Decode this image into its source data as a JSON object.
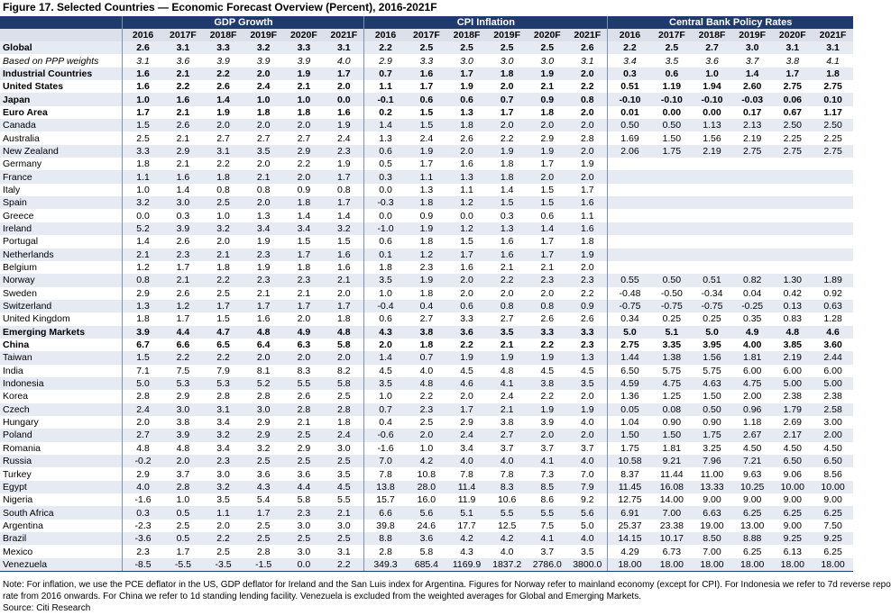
{
  "title": "Figure 17. Selected Countries — Economic Forecast Overview (Percent), 2016-2021F",
  "groups": [
    "GDP Growth",
    "CPI Inflation",
    "Central Bank Policy Rates"
  ],
  "years": [
    "2016",
    "2017F",
    "2018F",
    "2019F",
    "2020F",
    "2021F"
  ],
  "rows": [
    {
      "name": "Global",
      "style": "bold",
      "gdp": [
        "2.6",
        "3.1",
        "3.3",
        "3.2",
        "3.3",
        "3.1"
      ],
      "cpi": [
        "2.2",
        "2.5",
        "2.5",
        "2.5",
        "2.5",
        "2.6"
      ],
      "rates": [
        "2.2",
        "2.5",
        "2.7",
        "3.0",
        "3.1",
        "3.1"
      ]
    },
    {
      "name": "Based on PPP weights",
      "style": "italic",
      "gdp": [
        "3.1",
        "3.6",
        "3.9",
        "3.9",
        "3.9",
        "4.0"
      ],
      "cpi": [
        "2.9",
        "3.3",
        "3.0",
        "3.0",
        "3.0",
        "3.1"
      ],
      "rates": [
        "3.4",
        "3.5",
        "3.6",
        "3.7",
        "3.8",
        "4.1"
      ]
    },
    {
      "name": "Industrial Countries",
      "style": "bold",
      "gdp": [
        "1.6",
        "2.1",
        "2.2",
        "2.0",
        "1.9",
        "1.7"
      ],
      "cpi": [
        "0.7",
        "1.6",
        "1.7",
        "1.8",
        "1.9",
        "2.0"
      ],
      "rates": [
        "0.3",
        "0.6",
        "1.0",
        "1.4",
        "1.7",
        "1.8"
      ]
    },
    {
      "name": "United States",
      "style": "bold",
      "gdp": [
        "1.6",
        "2.2",
        "2.6",
        "2.4",
        "2.1",
        "2.0"
      ],
      "cpi": [
        "1.1",
        "1.7",
        "1.9",
        "2.0",
        "2.1",
        "2.2"
      ],
      "rates": [
        "0.51",
        "1.19",
        "1.94",
        "2.60",
        "2.75",
        "2.75"
      ]
    },
    {
      "name": "Japan",
      "style": "bold",
      "gdp": [
        "1.0",
        "1.6",
        "1.4",
        "1.0",
        "1.0",
        "0.0"
      ],
      "cpi": [
        "-0.1",
        "0.6",
        "0.6",
        "0.7",
        "0.9",
        "0.8"
      ],
      "rates": [
        "-0.10",
        "-0.10",
        "-0.10",
        "-0.03",
        "0.06",
        "0.10"
      ]
    },
    {
      "name": "Euro Area",
      "style": "bold",
      "gdp": [
        "1.7",
        "2.1",
        "1.9",
        "1.8",
        "1.8",
        "1.6"
      ],
      "cpi": [
        "0.2",
        "1.5",
        "1.3",
        "1.7",
        "1.8",
        "2.0"
      ],
      "rates": [
        "0.01",
        "0.00",
        "0.00",
        "0.17",
        "0.67",
        "1.17"
      ]
    },
    {
      "name": "Canada",
      "style": "",
      "gdp": [
        "1.5",
        "2.6",
        "2.0",
        "2.0",
        "2.0",
        "1.9"
      ],
      "cpi": [
        "1.4",
        "1.5",
        "1.8",
        "2.0",
        "2.0",
        "2.0"
      ],
      "rates": [
        "0.50",
        "0.50",
        "1.13",
        "2.13",
        "2.50",
        "2.50"
      ]
    },
    {
      "name": "Australia",
      "style": "",
      "gdp": [
        "2.5",
        "2.1",
        "2.7",
        "2.7",
        "2.7",
        "2.4"
      ],
      "cpi": [
        "1.3",
        "2.4",
        "2.6",
        "2.2",
        "2.9",
        "2.8"
      ],
      "rates": [
        "1.69",
        "1.50",
        "1.56",
        "2.19",
        "2.25",
        "2.25"
      ]
    },
    {
      "name": "New Zealand",
      "style": "",
      "gdp": [
        "3.3",
        "2.9",
        "3.1",
        "3.5",
        "2.9",
        "2.3"
      ],
      "cpi": [
        "0.6",
        "1.9",
        "2.0",
        "1.9",
        "1.9",
        "2.0"
      ],
      "rates": [
        "2.06",
        "1.75",
        "2.19",
        "2.75",
        "2.75",
        "2.75"
      ]
    },
    {
      "name": "Germany",
      "style": "",
      "gdp": [
        "1.8",
        "2.1",
        "2.2",
        "2.0",
        "2.2",
        "1.9"
      ],
      "cpi": [
        "0.5",
        "1.7",
        "1.6",
        "1.8",
        "1.7",
        "1.9"
      ],
      "rates": [
        "",
        "",
        "",
        "",
        "",
        ""
      ]
    },
    {
      "name": "France",
      "style": "",
      "gdp": [
        "1.1",
        "1.6",
        "1.8",
        "2.1",
        "2.0",
        "1.7"
      ],
      "cpi": [
        "0.3",
        "1.1",
        "1.3",
        "1.8",
        "2.0",
        "2.0"
      ],
      "rates": [
        "",
        "",
        "",
        "",
        "",
        ""
      ]
    },
    {
      "name": "Italy",
      "style": "",
      "gdp": [
        "1.0",
        "1.4",
        "0.8",
        "0.8",
        "0.9",
        "0.8"
      ],
      "cpi": [
        "0.0",
        "1.3",
        "1.1",
        "1.4",
        "1.5",
        "1.7"
      ],
      "rates": [
        "",
        "",
        "",
        "",
        "",
        ""
      ]
    },
    {
      "name": "Spain",
      "style": "",
      "gdp": [
        "3.2",
        "3.0",
        "2.5",
        "2.0",
        "1.8",
        "1.7"
      ],
      "cpi": [
        "-0.3",
        "1.8",
        "1.2",
        "1.5",
        "1.5",
        "1.6"
      ],
      "rates": [
        "",
        "",
        "",
        "",
        "",
        ""
      ]
    },
    {
      "name": "Greece",
      "style": "",
      "gdp": [
        "0.0",
        "0.3",
        "1.0",
        "1.3",
        "1.4",
        "1.4"
      ],
      "cpi": [
        "0.0",
        "0.9",
        "0.0",
        "0.3",
        "0.6",
        "1.1"
      ],
      "rates": [
        "",
        "",
        "",
        "",
        "",
        ""
      ]
    },
    {
      "name": "Ireland",
      "style": "",
      "gdp": [
        "5.2",
        "3.9",
        "3.2",
        "3.4",
        "3.4",
        "3.2"
      ],
      "cpi": [
        "-1.0",
        "1.9",
        "1.2",
        "1.3",
        "1.4",
        "1.6"
      ],
      "rates": [
        "",
        "",
        "",
        "",
        "",
        ""
      ]
    },
    {
      "name": "Portugal",
      "style": "",
      "gdp": [
        "1.4",
        "2.6",
        "2.0",
        "1.9",
        "1.5",
        "1.5"
      ],
      "cpi": [
        "0.6",
        "1.8",
        "1.5",
        "1.6",
        "1.7",
        "1.8"
      ],
      "rates": [
        "",
        "",
        "",
        "",
        "",
        ""
      ]
    },
    {
      "name": "Netherlands",
      "style": "",
      "gdp": [
        "2.1",
        "2.3",
        "2.1",
        "2.3",
        "1.7",
        "1.6"
      ],
      "cpi": [
        "0.1",
        "1.2",
        "1.7",
        "1.6",
        "1.7",
        "1.9"
      ],
      "rates": [
        "",
        "",
        "",
        "",
        "",
        ""
      ]
    },
    {
      "name": "Belgium",
      "style": "",
      "gdp": [
        "1.2",
        "1.7",
        "1.8",
        "1.9",
        "1.8",
        "1.6"
      ],
      "cpi": [
        "1.8",
        "2.3",
        "1.6",
        "2.1",
        "2.1",
        "2.0"
      ],
      "rates": [
        "",
        "",
        "",
        "",
        "",
        ""
      ]
    },
    {
      "name": "Norway",
      "style": "",
      "gdp": [
        "0.8",
        "2.1",
        "2.2",
        "2.3",
        "2.3",
        "2.1"
      ],
      "cpi": [
        "3.5",
        "1.9",
        "2.0",
        "2.2",
        "2.3",
        "2.3"
      ],
      "rates": [
        "0.55",
        "0.50",
        "0.51",
        "0.82",
        "1.30",
        "1.89"
      ]
    },
    {
      "name": "Sweden",
      "style": "",
      "gdp": [
        "2.9",
        "2.6",
        "2.5",
        "2.1",
        "2.1",
        "2.0"
      ],
      "cpi": [
        "1.0",
        "1.8",
        "2.0",
        "2.0",
        "2.0",
        "2.2"
      ],
      "rates": [
        "-0.48",
        "-0.50",
        "-0.34",
        "0.04",
        "0.42",
        "0.92"
      ]
    },
    {
      "name": "Switzerland",
      "style": "",
      "gdp": [
        "1.3",
        "1.2",
        "1.7",
        "1.7",
        "1.7",
        "1.7"
      ],
      "cpi": [
        "-0.4",
        "0.4",
        "0.6",
        "0.8",
        "0.8",
        "0.9"
      ],
      "rates": [
        "-0.75",
        "-0.75",
        "-0.75",
        "-0.25",
        "0.13",
        "0.63"
      ]
    },
    {
      "name": "United Kingdom",
      "style": "",
      "gdp": [
        "1.8",
        "1.7",
        "1.5",
        "1.6",
        "2.0",
        "1.8"
      ],
      "cpi": [
        "0.6",
        "2.7",
        "3.3",
        "2.7",
        "2.6",
        "2.6"
      ],
      "rates": [
        "0.34",
        "0.25",
        "0.25",
        "0.35",
        "0.83",
        "1.28"
      ]
    },
    {
      "name": "Emerging Markets",
      "style": "bold",
      "gdp": [
        "3.9",
        "4.4",
        "4.7",
        "4.8",
        "4.9",
        "4.8"
      ],
      "cpi": [
        "4.3",
        "3.8",
        "3.6",
        "3.5",
        "3.3",
        "3.3"
      ],
      "rates": [
        "5.0",
        "5.1",
        "5.0",
        "4.9",
        "4.8",
        "4.6"
      ]
    },
    {
      "name": "China",
      "style": "bold",
      "gdp": [
        "6.7",
        "6.6",
        "6.5",
        "6.4",
        "6.3",
        "5.8"
      ],
      "cpi": [
        "2.0",
        "1.8",
        "2.2",
        "2.1",
        "2.2",
        "2.3"
      ],
      "rates": [
        "2.75",
        "3.35",
        "3.95",
        "4.00",
        "3.85",
        "3.60"
      ]
    },
    {
      "name": "Taiwan",
      "style": "",
      "gdp": [
        "1.5",
        "2.2",
        "2.2",
        "2.0",
        "2.0",
        "2.0"
      ],
      "cpi": [
        "1.4",
        "0.7",
        "1.9",
        "1.9",
        "1.9",
        "1.3"
      ],
      "rates": [
        "1.44",
        "1.38",
        "1.56",
        "1.81",
        "2.19",
        "2.44"
      ]
    },
    {
      "name": "India",
      "style": "",
      "gdp": [
        "7.1",
        "7.5",
        "7.9",
        "8.1",
        "8.3",
        "8.2"
      ],
      "cpi": [
        "4.5",
        "4.0",
        "4.5",
        "4.8",
        "4.5",
        "4.5"
      ],
      "rates": [
        "6.50",
        "5.75",
        "5.75",
        "6.00",
        "6.00",
        "6.00"
      ]
    },
    {
      "name": "Indonesia",
      "style": "",
      "gdp": [
        "5.0",
        "5.3",
        "5.3",
        "5.2",
        "5.5",
        "5.8"
      ],
      "cpi": [
        "3.5",
        "4.8",
        "4.6",
        "4.1",
        "3.8",
        "3.5"
      ],
      "rates": [
        "4.59",
        "4.75",
        "4.63",
        "4.75",
        "5.00",
        "5.00"
      ]
    },
    {
      "name": "Korea",
      "style": "",
      "gdp": [
        "2.8",
        "2.9",
        "2.8",
        "2.8",
        "2.6",
        "2.5"
      ],
      "cpi": [
        "1.0",
        "2.2",
        "2.0",
        "2.4",
        "2.2",
        "2.0"
      ],
      "rates": [
        "1.36",
        "1.25",
        "1.50",
        "2.00",
        "2.38",
        "2.38"
      ]
    },
    {
      "name": "Czech",
      "style": "",
      "gdp": [
        "2.4",
        "3.0",
        "3.1",
        "3.0",
        "2.8",
        "2.8"
      ],
      "cpi": [
        "0.7",
        "2.3",
        "1.7",
        "2.1",
        "1.9",
        "1.9"
      ],
      "rates": [
        "0.05",
        "0.08",
        "0.50",
        "0.96",
        "1.79",
        "2.58"
      ]
    },
    {
      "name": "Hungary",
      "style": "",
      "gdp": [
        "2.0",
        "3.8",
        "3.4",
        "2.9",
        "2.1",
        "1.8"
      ],
      "cpi": [
        "0.4",
        "2.5",
        "2.9",
        "3.8",
        "3.9",
        "4.0"
      ],
      "rates": [
        "1.04",
        "0.90",
        "0.90",
        "1.18",
        "2.69",
        "3.00"
      ]
    },
    {
      "name": "Poland",
      "style": "",
      "gdp": [
        "2.7",
        "3.9",
        "3.2",
        "2.9",
        "2.5",
        "2.4"
      ],
      "cpi": [
        "-0.6",
        "2.0",
        "2.4",
        "2.7",
        "2.0",
        "2.0"
      ],
      "rates": [
        "1.50",
        "1.50",
        "1.75",
        "2.67",
        "2.17",
        "2.00"
      ]
    },
    {
      "name": "Romania",
      "style": "",
      "gdp": [
        "4.8",
        "4.8",
        "3.4",
        "3.2",
        "2.9",
        "3.0"
      ],
      "cpi": [
        "-1.6",
        "1.0",
        "3.4",
        "3.7",
        "3.7",
        "3.7"
      ],
      "rates": [
        "1.75",
        "1.81",
        "3.25",
        "4.50",
        "4.50",
        "4.50"
      ]
    },
    {
      "name": "Russia",
      "style": "",
      "gdp": [
        "-0.2",
        "2.0",
        "2.3",
        "2.5",
        "2.5",
        "2.5"
      ],
      "cpi": [
        "7.0",
        "4.2",
        "4.0",
        "4.0",
        "4.1",
        "4.0"
      ],
      "rates": [
        "10.58",
        "9.21",
        "7.96",
        "7.21",
        "6.50",
        "6.50"
      ]
    },
    {
      "name": "Turkey",
      "style": "",
      "gdp": [
        "2.9",
        "3.7",
        "3.0",
        "3.6",
        "3.6",
        "3.5"
      ],
      "cpi": [
        "7.8",
        "10.8",
        "7.8",
        "7.8",
        "7.3",
        "7.0"
      ],
      "rates": [
        "8.37",
        "11.44",
        "11.00",
        "9.63",
        "9.06",
        "8.56"
      ]
    },
    {
      "name": "Egypt",
      "style": "",
      "gdp": [
        "4.0",
        "2.8",
        "3.2",
        "4.3",
        "4.4",
        "4.5"
      ],
      "cpi": [
        "13.8",
        "28.0",
        "11.4",
        "8.3",
        "8.5",
        "7.9"
      ],
      "rates": [
        "11.45",
        "16.08",
        "13.33",
        "10.25",
        "10.00",
        "10.00"
      ]
    },
    {
      "name": "Nigeria",
      "style": "",
      "gdp": [
        "-1.6",
        "1.0",
        "3.5",
        "5.4",
        "5.8",
        "5.5"
      ],
      "cpi": [
        "15.7",
        "16.0",
        "11.9",
        "10.6",
        "8.6",
        "9.2"
      ],
      "rates": [
        "12.75",
        "14.00",
        "9.00",
        "9.00",
        "9.00",
        "9.00"
      ]
    },
    {
      "name": "South Africa",
      "style": "",
      "gdp": [
        "0.3",
        "0.5",
        "1.1",
        "1.7",
        "2.3",
        "2.1"
      ],
      "cpi": [
        "6.6",
        "5.6",
        "5.1",
        "5.5",
        "5.5",
        "5.6"
      ],
      "rates": [
        "6.91",
        "7.00",
        "6.63",
        "6.25",
        "6.25",
        "6.25"
      ]
    },
    {
      "name": "Argentina",
      "style": "",
      "gdp": [
        "-2.3",
        "2.5",
        "2.0",
        "2.5",
        "3.0",
        "3.0"
      ],
      "cpi": [
        "39.8",
        "24.6",
        "17.7",
        "12.5",
        "7.5",
        "5.0"
      ],
      "rates": [
        "25.37",
        "23.38",
        "19.00",
        "13.00",
        "9.00",
        "7.50"
      ]
    },
    {
      "name": "Brazil",
      "style": "",
      "gdp": [
        "-3.6",
        "0.5",
        "2.2",
        "2.5",
        "2.5",
        "2.5"
      ],
      "cpi": [
        "8.8",
        "3.6",
        "4.2",
        "4.2",
        "4.1",
        "4.0"
      ],
      "rates": [
        "14.15",
        "10.17",
        "8.50",
        "8.88",
        "9.25",
        "9.25"
      ]
    },
    {
      "name": "Mexico",
      "style": "",
      "gdp": [
        "2.3",
        "1.7",
        "2.5",
        "2.8",
        "3.0",
        "3.1"
      ],
      "cpi": [
        "2.8",
        "5.8",
        "4.3",
        "4.0",
        "3.7",
        "3.5"
      ],
      "rates": [
        "4.29",
        "6.73",
        "7.00",
        "6.25",
        "6.13",
        "6.25"
      ]
    },
    {
      "name": "Venezuela",
      "style": "",
      "gdp": [
        "-8.5",
        "-5.5",
        "-3.5",
        "-1.5",
        "0.0",
        "2.2"
      ],
      "cpi": [
        "349.3",
        "685.4",
        "1169.9",
        "1837.2",
        "2786.0",
        "3800.0"
      ],
      "rates": [
        "18.00",
        "18.00",
        "18.00",
        "18.00",
        "18.00",
        "18.00"
      ]
    }
  ],
  "notes": [
    "Note: For inflation, we use the PCE deflator in the US, GDP deflator for Ireland and the San Luis index for Argentina. Figures for Norway refer to mainland economy (except for CPI). For Indonesia we refer to 7d reverse repo",
    "rate from 2016 onwards. For China we refer to 1d standing lending facility. Venezuela is excluded from the weighted averages for Global and Emerging Markets.",
    "Source: Citi Research"
  ]
}
